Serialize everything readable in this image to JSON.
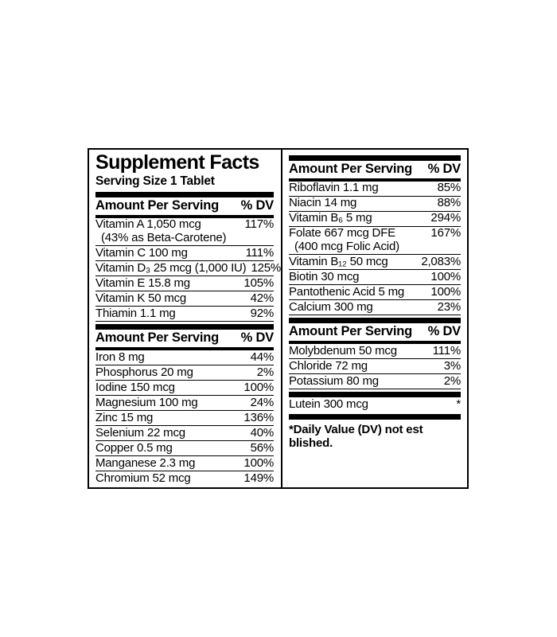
{
  "label": {
    "title": "Supplement Facts",
    "serving_size": "Serving Size 1 Tablet",
    "column_header": {
      "amount": "Amount Per Serving",
      "dv": "% DV"
    },
    "footnote": "*Daily Value (DV) not est  blished.",
    "colors": {
      "ink": "#000000",
      "background": "#ffffff"
    },
    "columns": [
      {
        "sections": [
          {
            "header": true,
            "rows": [
              {
                "name": "Vitamin A 1,050 mcg",
                "sub": "(43% as Beta-Carotene)",
                "dv": "117%"
              },
              {
                "name": "Vitamin C 100 mg",
                "dv": "111%"
              },
              {
                "name": "Vitamin D₃ 25 mcg (1,000 IU)",
                "dv": "125%"
              },
              {
                "name": "Vitamin E  15.8 mg",
                "dv": "105%"
              },
              {
                "name": "Vitamin K 50 mcg",
                "dv": "42%"
              },
              {
                "name": "Thiamin 1.1 mg",
                "dv": "92%"
              }
            ]
          },
          {
            "header": true,
            "rows": [
              {
                "name": "Iron 8 mg",
                "dv": "44%"
              },
              {
                "name": "Phosphorus 20 mg",
                "dv": "2%"
              },
              {
                "name": "Iodine 150 mcg",
                "dv": "100%"
              },
              {
                "name": "Magnesium 100 mg",
                "dv": "24%"
              },
              {
                "name": "Zinc 15 mg",
                "dv": "136%"
              },
              {
                "name": "Selenium 22 mcg",
                "dv": "40%"
              },
              {
                "name": "Copper 0.5 mg",
                "dv": "56%"
              },
              {
                "name": "Manganese 2.3 mg",
                "dv": "100%"
              },
              {
                "name": "Chromium 52 mcg",
                "dv": "149%"
              }
            ]
          }
        ]
      },
      {
        "sections": [
          {
            "header": true,
            "rows": [
              {
                "name": "Riboflavin 1.1 mg",
                "dv": "85%"
              },
              {
                "name": "Niacin 14 mg",
                "dv": "88%"
              },
              {
                "name": "Vitamin B₆ 5 mg",
                "dv": "294%"
              },
              {
                "name": "Folate 667 mcg DFE",
                "sub": "(400 mcg Folic Acid)",
                "dv": "167%"
              },
              {
                "name": "Vitamin B₁₂ 50 mcg",
                "dv": "2,083%"
              },
              {
                "name": "Biotin 30 mcg",
                "dv": "100%"
              },
              {
                "name": "Pantothenic Acid 5 mg",
                "dv": "100%"
              },
              {
                "name": "Calcium 300 mg",
                "dv": "23%"
              }
            ]
          },
          {
            "header": true,
            "rows": [
              {
                "name": "Molybdenum 50 mcg",
                "dv": "111%"
              },
              {
                "name": "Chloride 72 mg",
                "dv": "3%"
              },
              {
                "name": "Potassium 80 mg",
                "dv": "2%"
              }
            ]
          },
          {
            "header": false,
            "rows": [
              {
                "name": "Lutein 300 mcg",
                "dv": "*"
              }
            ]
          }
        ]
      }
    ]
  }
}
